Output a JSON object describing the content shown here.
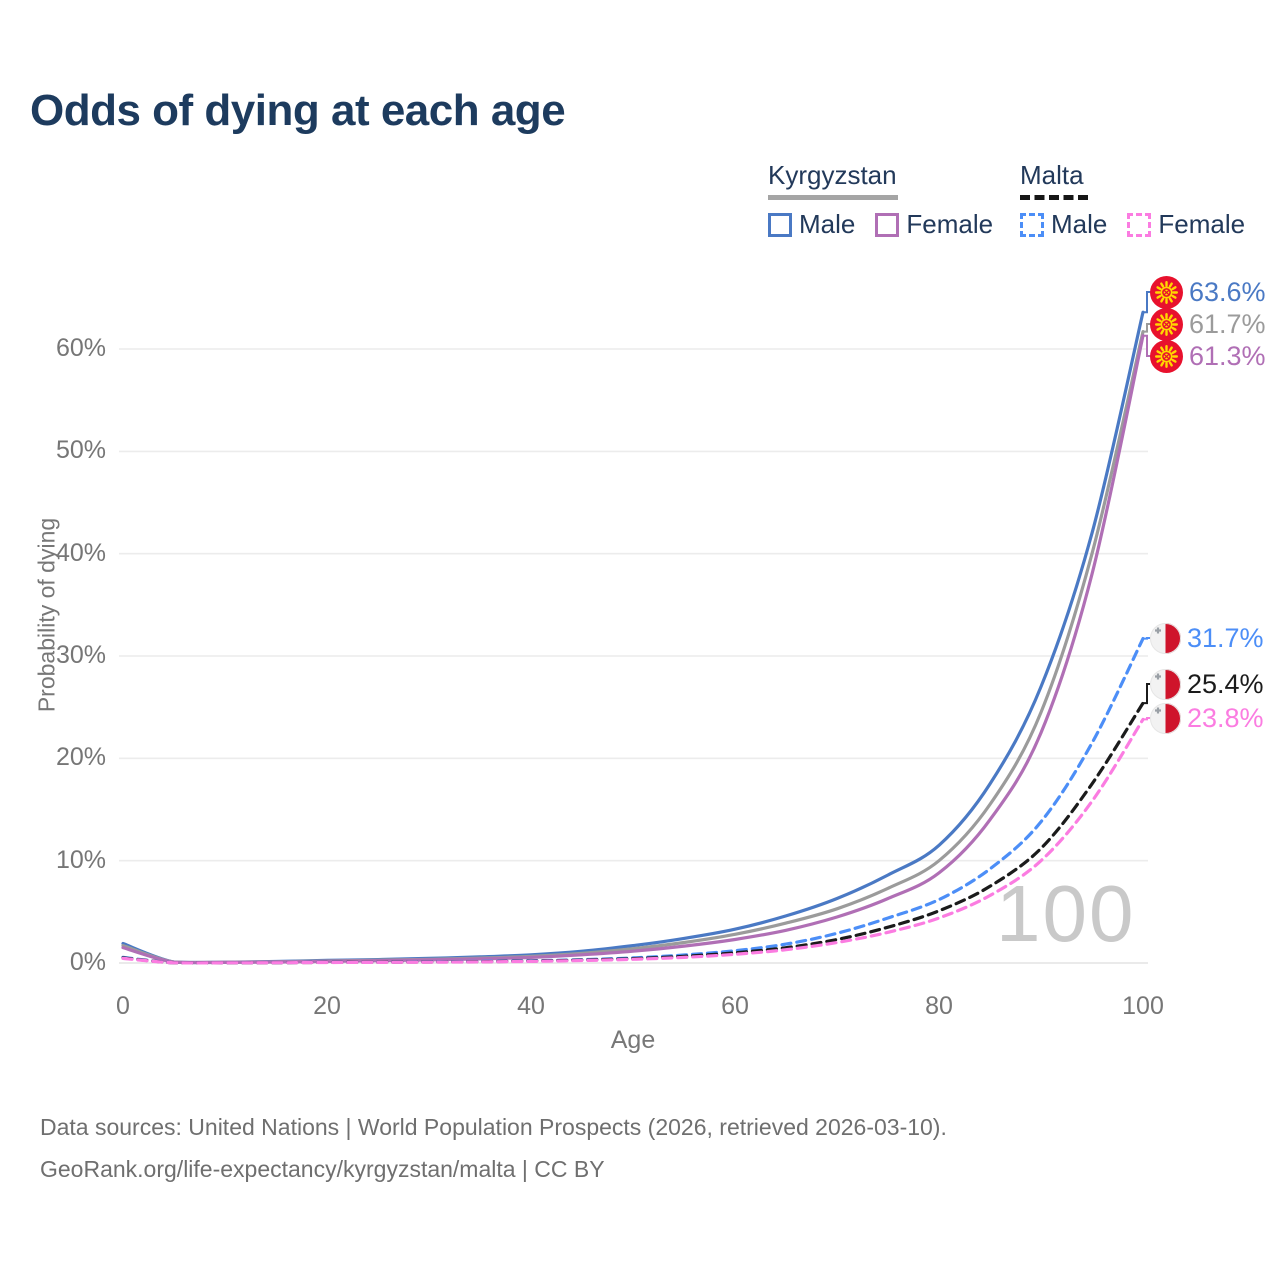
{
  "title": "Odds of dying at each age",
  "legend": {
    "groups": [
      {
        "country": "Kyrgyzstan",
        "line_style": "solid",
        "underline_color": "#a5a5a5",
        "items": [
          {
            "label": "Male",
            "color": "#4a79c4"
          },
          {
            "label": "Female",
            "color": "#b06fb5"
          }
        ]
      },
      {
        "country": "Malta",
        "line_style": "dashed",
        "underline_color": "#161616",
        "items": [
          {
            "label": "Male",
            "color": "#4c8ef7"
          },
          {
            "label": "Female",
            "color": "#fb7ce1"
          }
        ]
      }
    ]
  },
  "chart_data": {
    "type": "line",
    "title": "Odds of dying at each age",
    "xlabel": "Age",
    "ylabel": "Probability of dying",
    "grid": "horizontal",
    "watermark": "100",
    "xlim": [
      0,
      100
    ],
    "ylim": [
      0,
      66
    ],
    "xticks": [
      0,
      20,
      40,
      60,
      80,
      100
    ],
    "yticks": [
      "0%",
      "10%",
      "20%",
      "30%",
      "40%",
      "50%",
      "60%"
    ],
    "x": [
      0,
      5,
      10,
      15,
      20,
      25,
      30,
      35,
      40,
      45,
      50,
      55,
      60,
      65,
      70,
      75,
      80,
      85,
      90,
      95,
      100
    ],
    "series": [
      {
        "name": "Kyrgyzstan Male",
        "country": "Kyrgyzstan",
        "sex": "Male",
        "color": "#4a79c4",
        "dash": "solid",
        "flag": "kyrgyzstan",
        "end_label": "63.6%",
        "values": [
          1.9,
          0.1,
          0.08,
          0.15,
          0.25,
          0.33,
          0.45,
          0.6,
          0.8,
          1.15,
          1.7,
          2.4,
          3.3,
          4.6,
          6.3,
          8.6,
          11.5,
          17.5,
          27,
          42,
          63.6
        ]
      },
      {
        "name": "Kyrgyzstan Both sexes",
        "country": "Kyrgyzstan",
        "sex": "Both",
        "color": "#9b9b9b",
        "dash": "solid",
        "flag": "kyrgyzstan",
        "end_label": "61.7%",
        "values": [
          1.7,
          0.09,
          0.07,
          0.12,
          0.2,
          0.27,
          0.36,
          0.48,
          0.65,
          0.95,
          1.4,
          2,
          2.8,
          3.9,
          5.3,
          7.3,
          10,
          15.5,
          24.5,
          40,
          61.7
        ]
      },
      {
        "name": "Kyrgyzstan Female",
        "country": "Kyrgyzstan",
        "sex": "Female",
        "color": "#b06fb5",
        "dash": "solid",
        "flag": "kyrgyzstan",
        "end_label": "61.3%",
        "values": [
          1.5,
          0.08,
          0.06,
          0.1,
          0.16,
          0.22,
          0.3,
          0.4,
          0.55,
          0.8,
          1.15,
          1.65,
          2.3,
          3.2,
          4.5,
          6.3,
          8.8,
          14,
          22.5,
          38,
          61.3
        ]
      },
      {
        "name": "Malta Male",
        "country": "Malta",
        "sex": "Male",
        "color": "#4c8ef7",
        "dash": "dashed",
        "flag": "malta",
        "end_label": "31.7%",
        "values": [
          0.55,
          0.02,
          0.02,
          0.04,
          0.07,
          0.09,
          0.12,
          0.16,
          0.22,
          0.32,
          0.5,
          0.78,
          1.2,
          1.85,
          2.9,
          4.4,
          6.2,
          9.2,
          13.8,
          21.5,
          31.7
        ]
      },
      {
        "name": "Malta Both sexes",
        "country": "Malta",
        "sex": "Both",
        "color": "#1b1b1b",
        "dash": "dashed",
        "flag": "malta",
        "end_label": "25.4%",
        "values": [
          0.5,
          0.02,
          0.02,
          0.03,
          0.06,
          0.08,
          0.1,
          0.13,
          0.19,
          0.28,
          0.42,
          0.65,
          1,
          1.5,
          2.3,
          3.5,
          5.1,
          7.5,
          11.2,
          17.5,
          25.4
        ]
      },
      {
        "name": "Malta Female",
        "country": "Malta",
        "sex": "Female",
        "color": "#fb7ce1",
        "dash": "dashed",
        "flag": "malta",
        "end_label": "23.8%",
        "values": [
          0.45,
          0.015,
          0.015,
          0.025,
          0.05,
          0.06,
          0.08,
          0.11,
          0.16,
          0.24,
          0.36,
          0.55,
          0.85,
          1.3,
          2,
          3,
          4.4,
          6.6,
          10,
          15.8,
          23.8
        ]
      }
    ]
  },
  "flag_colors": {
    "kyrgyzstan_red": "#e8112d",
    "kyrgyzstan_yellow": "#ffd700",
    "malta_white": "#f2f2f2",
    "malta_red": "#cf142b",
    "malta_cross": "#9aa0a6"
  },
  "footer": {
    "line1": "Data sources: United Nations | World Population Prospects (2026, retrieved 2026-03-10).",
    "line2": "GeoRank.org/life-expectancy/kyrgyzstan/malta | CC BY"
  }
}
